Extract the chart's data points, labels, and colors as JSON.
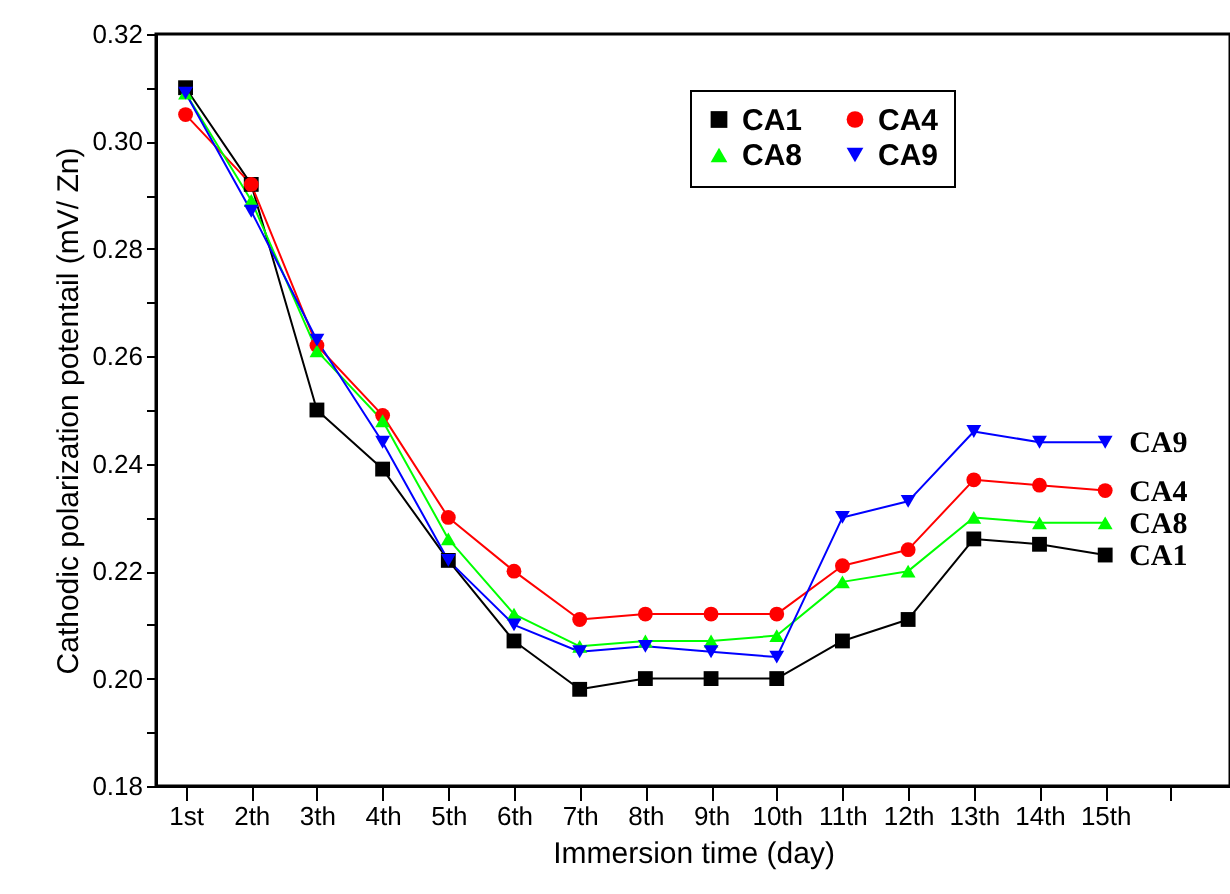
{
  "chart_data": {
    "type": "line",
    "xlabel": "Immersion time (day)",
    "ylabel": "Cathodic polarization potentail (mV/ Zn)",
    "categories": [
      "1st",
      "2th",
      "3th",
      "4th",
      "5th",
      "6th",
      "7th",
      "8th",
      "9th",
      "10th",
      "11th",
      "12th",
      "13th",
      "14th",
      "15th",
      null
    ],
    "series": [
      {
        "name": "CA1",
        "color": "#000000",
        "marker": "square",
        "values": [
          0.31,
          0.292,
          0.25,
          0.239,
          0.222,
          0.207,
          0.198,
          0.2,
          0.2,
          0.2,
          0.207,
          0.211,
          0.226,
          0.225,
          0.223,
          null
        ]
      },
      {
        "name": "CA4",
        "color": "#ff0000",
        "marker": "circle",
        "values": [
          0.305,
          0.292,
          0.262,
          0.249,
          0.23,
          0.22,
          0.211,
          0.212,
          0.212,
          0.212,
          0.221,
          0.224,
          0.237,
          0.236,
          0.235,
          null
        ]
      },
      {
        "name": "CA8",
        "color": "#00ff00",
        "marker": "triangle",
        "values": [
          0.309,
          0.289,
          0.261,
          0.248,
          0.226,
          0.212,
          0.206,
          0.207,
          0.207,
          0.208,
          0.218,
          0.22,
          0.23,
          0.229,
          0.229,
          null
        ]
      },
      {
        "name": "CA9",
        "color": "#0000ff",
        "marker": "triangle-down",
        "values": [
          0.309,
          0.287,
          0.263,
          0.244,
          0.222,
          0.21,
          0.205,
          0.206,
          0.205,
          0.204,
          0.23,
          0.233,
          0.246,
          0.244,
          0.244,
          null
        ]
      }
    ],
    "ylim": [
      0.18,
      0.32
    ],
    "yticks": [
      {
        "value": 0.18,
        "label": "0.18"
      },
      {
        "value": 0.19,
        "label": null
      },
      {
        "value": 0.2,
        "label": "0.20"
      },
      {
        "value": 0.21,
        "label": null
      },
      {
        "value": 0.22,
        "label": "0.22"
      },
      {
        "value": 0.23,
        "label": null
      },
      {
        "value": 0.24,
        "label": "0.24"
      },
      {
        "value": 0.25,
        "label": null
      },
      {
        "value": 0.26,
        "label": "0.26"
      },
      {
        "value": 0.27,
        "label": null
      },
      {
        "value": 0.28,
        "label": "0.28"
      },
      {
        "value": 0.29,
        "label": null
      },
      {
        "value": 0.3,
        "label": "0.30"
      },
      {
        "value": 0.31,
        "label": null
      },
      {
        "value": 0.32,
        "label": "0.32"
      }
    ],
    "grid": false,
    "legend": "top right",
    "line_style": "solid"
  }
}
